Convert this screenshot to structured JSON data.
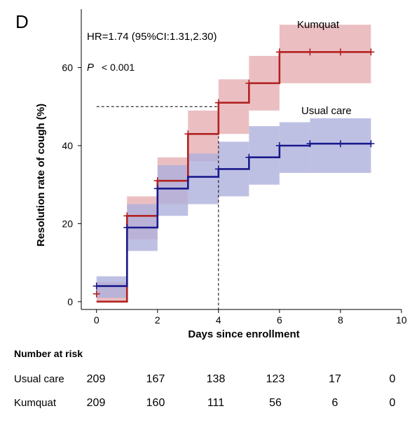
{
  "chart_data": {
    "type": "line",
    "panel_label": "D",
    "xlabel": "Days since enrollment",
    "ylabel": "Resolution rate of cough (%)",
    "xlim": [
      -0.5,
      10.3
    ],
    "ylim": [
      -2,
      75
    ],
    "x_ticks": [
      0,
      2,
      4,
      6,
      8,
      10
    ],
    "y_ticks": [
      0,
      20,
      40,
      60
    ],
    "grid": false,
    "annotations": {
      "hr": "HR=1.74 (95%CI:1.31,2.30)",
      "p_symbol": "P",
      "p_value": "< 0.001",
      "median_line": {
        "y": 50,
        "x": 4
      }
    },
    "series": [
      {
        "name": "Kumquat",
        "color": "#b22222",
        "band_color": "#e4a9ae",
        "steps": [
          [
            0,
            0,
            1
          ],
          [
            1,
            22,
            2
          ],
          [
            2,
            31,
            3
          ],
          [
            3,
            43,
            4
          ],
          [
            4,
            51,
            5
          ],
          [
            5,
            56,
            6
          ],
          [
            6,
            64,
            9
          ]
        ],
        "bands": [
          [
            0,
            0,
            5,
            1
          ],
          [
            1,
            16,
            27,
            2
          ],
          [
            2,
            25,
            37,
            3
          ],
          [
            3,
            36,
            49,
            4
          ],
          [
            4,
            43,
            57,
            5
          ],
          [
            5,
            49,
            63,
            6
          ],
          [
            6,
            56,
            71,
            9
          ]
        ],
        "censor_x": [
          0,
          1,
          2,
          3,
          4,
          5,
          6,
          7,
          8,
          9
        ],
        "censor_y": [
          2,
          22,
          31,
          43,
          51,
          56,
          64,
          64,
          64,
          64
        ]
      },
      {
        "name": "Usual care",
        "color": "#1a1a8c",
        "band_color": "#aeb0dc",
        "steps": [
          [
            0,
            4,
            1
          ],
          [
            1,
            19,
            2
          ],
          [
            2,
            29,
            3
          ],
          [
            3,
            32,
            4
          ],
          [
            4,
            34,
            5
          ],
          [
            5,
            37,
            6
          ],
          [
            6,
            40,
            7
          ],
          [
            7,
            40.5,
            9
          ]
        ],
        "bands": [
          [
            0,
            1,
            6.5,
            1
          ],
          [
            1,
            13,
            25,
            2
          ],
          [
            2,
            22,
            35,
            3
          ],
          [
            3,
            25,
            38,
            4
          ],
          [
            4,
            27,
            41,
            5
          ],
          [
            5,
            30,
            45,
            6
          ],
          [
            6,
            33,
            46,
            7
          ],
          [
            7,
            33,
            47,
            9
          ]
        ],
        "censor_x": [
          0,
          1,
          2,
          4,
          5,
          6,
          7,
          8,
          9
        ],
        "censor_y": [
          4,
          19,
          29,
          34,
          37,
          40,
          40.5,
          40.5,
          40.5
        ]
      }
    ]
  },
  "risk_table": {
    "title": "Number at risk",
    "rows": [
      {
        "label": "Usual care",
        "values": [
          "209",
          "167",
          "138",
          "123",
          "17",
          "0"
        ]
      },
      {
        "label": "Kumquat",
        "values": [
          "209",
          "160",
          "111",
          "56",
          "6",
          "0"
        ]
      }
    ]
  }
}
